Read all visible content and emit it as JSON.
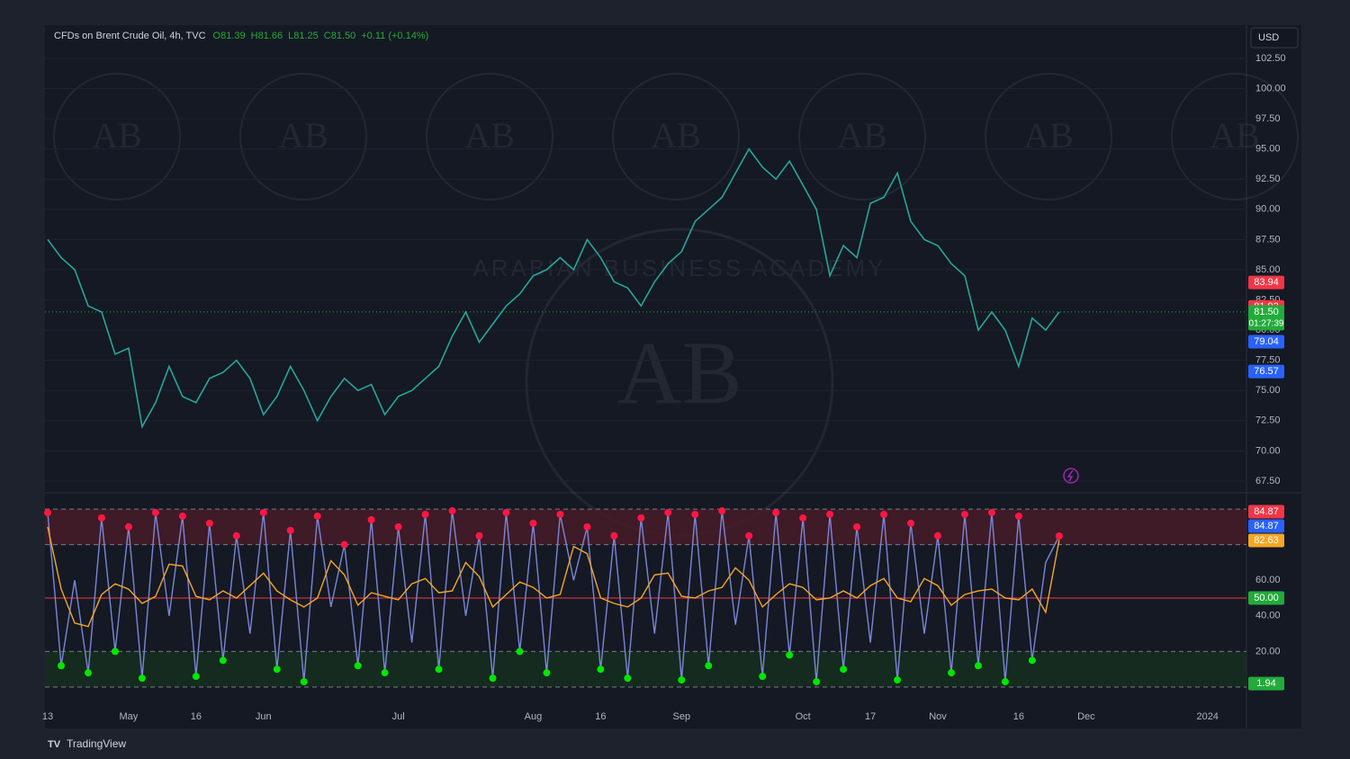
{
  "chart_data": [
    {
      "type": "line",
      "title": "CFDs on Brent Crude Oil, 4h, TVC",
      "ohlc": [
        {
          "value": 81.39,
          "label": "O81.39"
        },
        {
          "value": 81.66,
          "label": "H81.66"
        },
        {
          "value": 81.25,
          "label": "L81.25"
        },
        {
          "value": 81.5,
          "label": "C81.50"
        }
      ],
      "change": {
        "value": 0.11,
        "label": "+0.11 (+0.14%)"
      },
      "currency": "USD",
      "color": "#26a69a",
      "values": [
        87.5,
        86,
        85,
        82,
        81.5,
        78,
        78.5,
        72,
        74,
        77,
        74.5,
        74,
        76,
        76.5,
        77.5,
        76,
        73,
        74.5,
        77,
        75,
        72.5,
        74.5,
        76,
        75,
        75.5,
        73,
        74.5,
        75,
        76,
        77,
        79.5,
        81.5,
        79,
        80.5,
        82,
        83,
        84.5,
        85,
        86,
        85,
        87.5,
        86,
        84,
        83.5,
        82,
        84,
        85.5,
        86.5,
        89,
        90,
        91,
        93,
        95,
        93.5,
        92.5,
        94,
        92,
        90,
        84.5,
        87,
        86,
        90.5,
        91,
        93,
        89,
        87.5,
        87,
        85.5,
        84.5,
        80,
        81.5,
        80,
        77,
        81,
        80,
        81.5,
        null,
        null,
        null,
        null,
        null,
        null,
        null,
        null,
        null,
        null,
        null,
        null,
        null
      ],
      "ylim": [
        66.9,
        105.25
      ],
      "yticks": [
        {
          "value": 67.5,
          "label": "67.50"
        },
        {
          "value": 70,
          "label": "70.00"
        },
        {
          "value": 72.5,
          "label": "72.50"
        },
        {
          "value": 75,
          "label": "75.00"
        },
        {
          "value": 77.5,
          "label": "77.50"
        },
        {
          "value": 80,
          "label": "80.00"
        },
        {
          "value": 82.5,
          "label": "82.50"
        },
        {
          "value": 85,
          "label": "85.00"
        },
        {
          "value": 87.5,
          "label": "87.50"
        },
        {
          "value": 90,
          "label": "90.00"
        },
        {
          "value": 92.5,
          "label": "92.50"
        },
        {
          "value": 95,
          "label": "95.00"
        },
        {
          "value": 97.5,
          "label": "97.50"
        },
        {
          "value": 100,
          "label": "100.00"
        },
        {
          "value": 102.5,
          "label": "102.50"
        }
      ],
      "price_labels": [
        {
          "value": 83.94,
          "label": "83.94",
          "color": "#f23645"
        },
        {
          "value": 81.92,
          "label": "81.92",
          "color": "#f23645"
        },
        {
          "value": 81.5,
          "label": "81.50",
          "color": "#22ab3a"
        },
        {
          "value": 79.04,
          "label": "79.04",
          "color": "#2962ff"
        },
        {
          "value": 76.57,
          "label": "76.57",
          "color": "#2962ff"
        }
      ],
      "countdown": "01:27:39",
      "grid": true
    },
    {
      "type": "line",
      "categories": [
        "13",
        null,
        null,
        null,
        null,
        null,
        "May",
        null,
        null,
        null,
        null,
        "16",
        null,
        null,
        null,
        null,
        "Jun",
        null,
        null,
        null,
        null,
        null,
        null,
        null,
        null,
        null,
        "Jul",
        null,
        null,
        null,
        null,
        null,
        null,
        null,
        null,
        null,
        "Aug",
        null,
        null,
        null,
        null,
        "16",
        null,
        null,
        null,
        null,
        null,
        "Sep",
        null,
        null,
        null,
        null,
        null,
        null,
        null,
        null,
        "Oct",
        null,
        null,
        null,
        null,
        "17",
        null,
        null,
        null,
        null,
        "Nov",
        null,
        null,
        null,
        null,
        null,
        "16",
        null,
        null,
        null,
        null,
        "Dec",
        null,
        null,
        null,
        null,
        null,
        null,
        null,
        null,
        "2024",
        null,
        null
      ],
      "series": [
        {
          "color": "#7b86d6",
          "values": [
            98,
            12,
            60,
            8,
            95,
            20,
            90,
            5,
            98,
            40,
            96,
            6,
            92,
            15,
            85,
            30,
            98,
            10,
            88,
            3,
            96,
            45,
            80,
            12,
            94,
            8,
            90,
            25,
            97,
            10,
            99,
            40,
            85,
            5,
            98,
            20,
            92,
            8,
            97,
            60,
            90,
            10,
            85,
            5,
            95,
            30,
            98,
            4,
            97,
            12,
            99,
            35,
            85,
            6,
            98,
            18,
            95,
            3,
            97,
            10,
            90,
            25,
            97,
            4,
            92,
            30,
            85,
            8,
            97,
            12,
            98,
            3,
            96,
            15,
            70,
            84.87,
            null,
            null,
            null,
            null,
            null,
            null,
            null,
            null,
            null,
            null,
            null,
            null,
            null
          ]
        },
        {
          "color": "#f5a623",
          "values": [
            90,
            55,
            36,
            34,
            52,
            58,
            55,
            47,
            51,
            69,
            68,
            51,
            49,
            54,
            50,
            57,
            64,
            54,
            49,
            45,
            50,
            71,
            63,
            46,
            53,
            51,
            49,
            58,
            61,
            53,
            54,
            70,
            62,
            45,
            52,
            59,
            56,
            50,
            52,
            79,
            75,
            50,
            47,
            45,
            50,
            63,
            64,
            51,
            50,
            54,
            56,
            67,
            60,
            45,
            52,
            58,
            56,
            49,
            50,
            54,
            50,
            57,
            61,
            50,
            48,
            61,
            57,
            46,
            52,
            54,
            55,
            50,
            49,
            55,
            42,
            82.63,
            null,
            null,
            null,
            null,
            null,
            null,
            null,
            null,
            null,
            null,
            null,
            null,
            null
          ]
        }
      ],
      "ylim": [
        -10.6,
        106.6
      ],
      "yticks": [
        {
          "value": 20,
          "label": "20.00"
        },
        {
          "value": 40,
          "label": "40.00"
        },
        {
          "value": 60,
          "label": "60.00"
        }
      ],
      "levels": [
        100,
        80,
        50,
        20,
        0
      ],
      "zones": [
        {
          "from": 80,
          "to": 100,
          "color": "#4a1c28"
        },
        {
          "from": 0,
          "to": 20,
          "color": "#15301f"
        }
      ],
      "price_labels": [
        {
          "value": 84.87,
          "label": "84.87",
          "color": "#f23645"
        },
        {
          "value": 84.87,
          "label": "84.87",
          "color": "#2962ff"
        },
        {
          "value": 82.63,
          "label": "82.63",
          "color": "#f5a623"
        },
        {
          "value": 50,
          "label": "50.00",
          "color": "#22ab3a"
        },
        {
          "value": 1.94,
          "label": "1.94",
          "color": "#22ab3a"
        }
      ],
      "grid": true
    }
  ],
  "watermark": {
    "logo": "AB",
    "name": "ARABIAN BUSINESS ACADEMY"
  },
  "footer": "TradingView"
}
